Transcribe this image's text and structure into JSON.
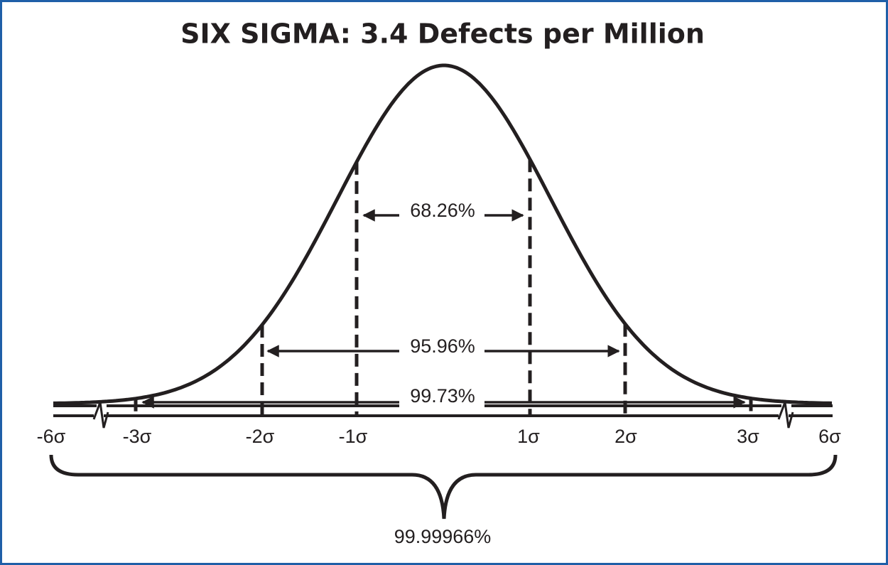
{
  "title": "SIX SIGMA: 3.4 Defects per Million",
  "sigma_labels": [
    "-6σ",
    "-3σ",
    "-2σ",
    "-1σ",
    "1σ",
    "2σ",
    "3σ",
    "6σ"
  ],
  "intervals": [
    "68.26%",
    "95.96%",
    "99.73%"
  ],
  "total": "99.99966%"
}
